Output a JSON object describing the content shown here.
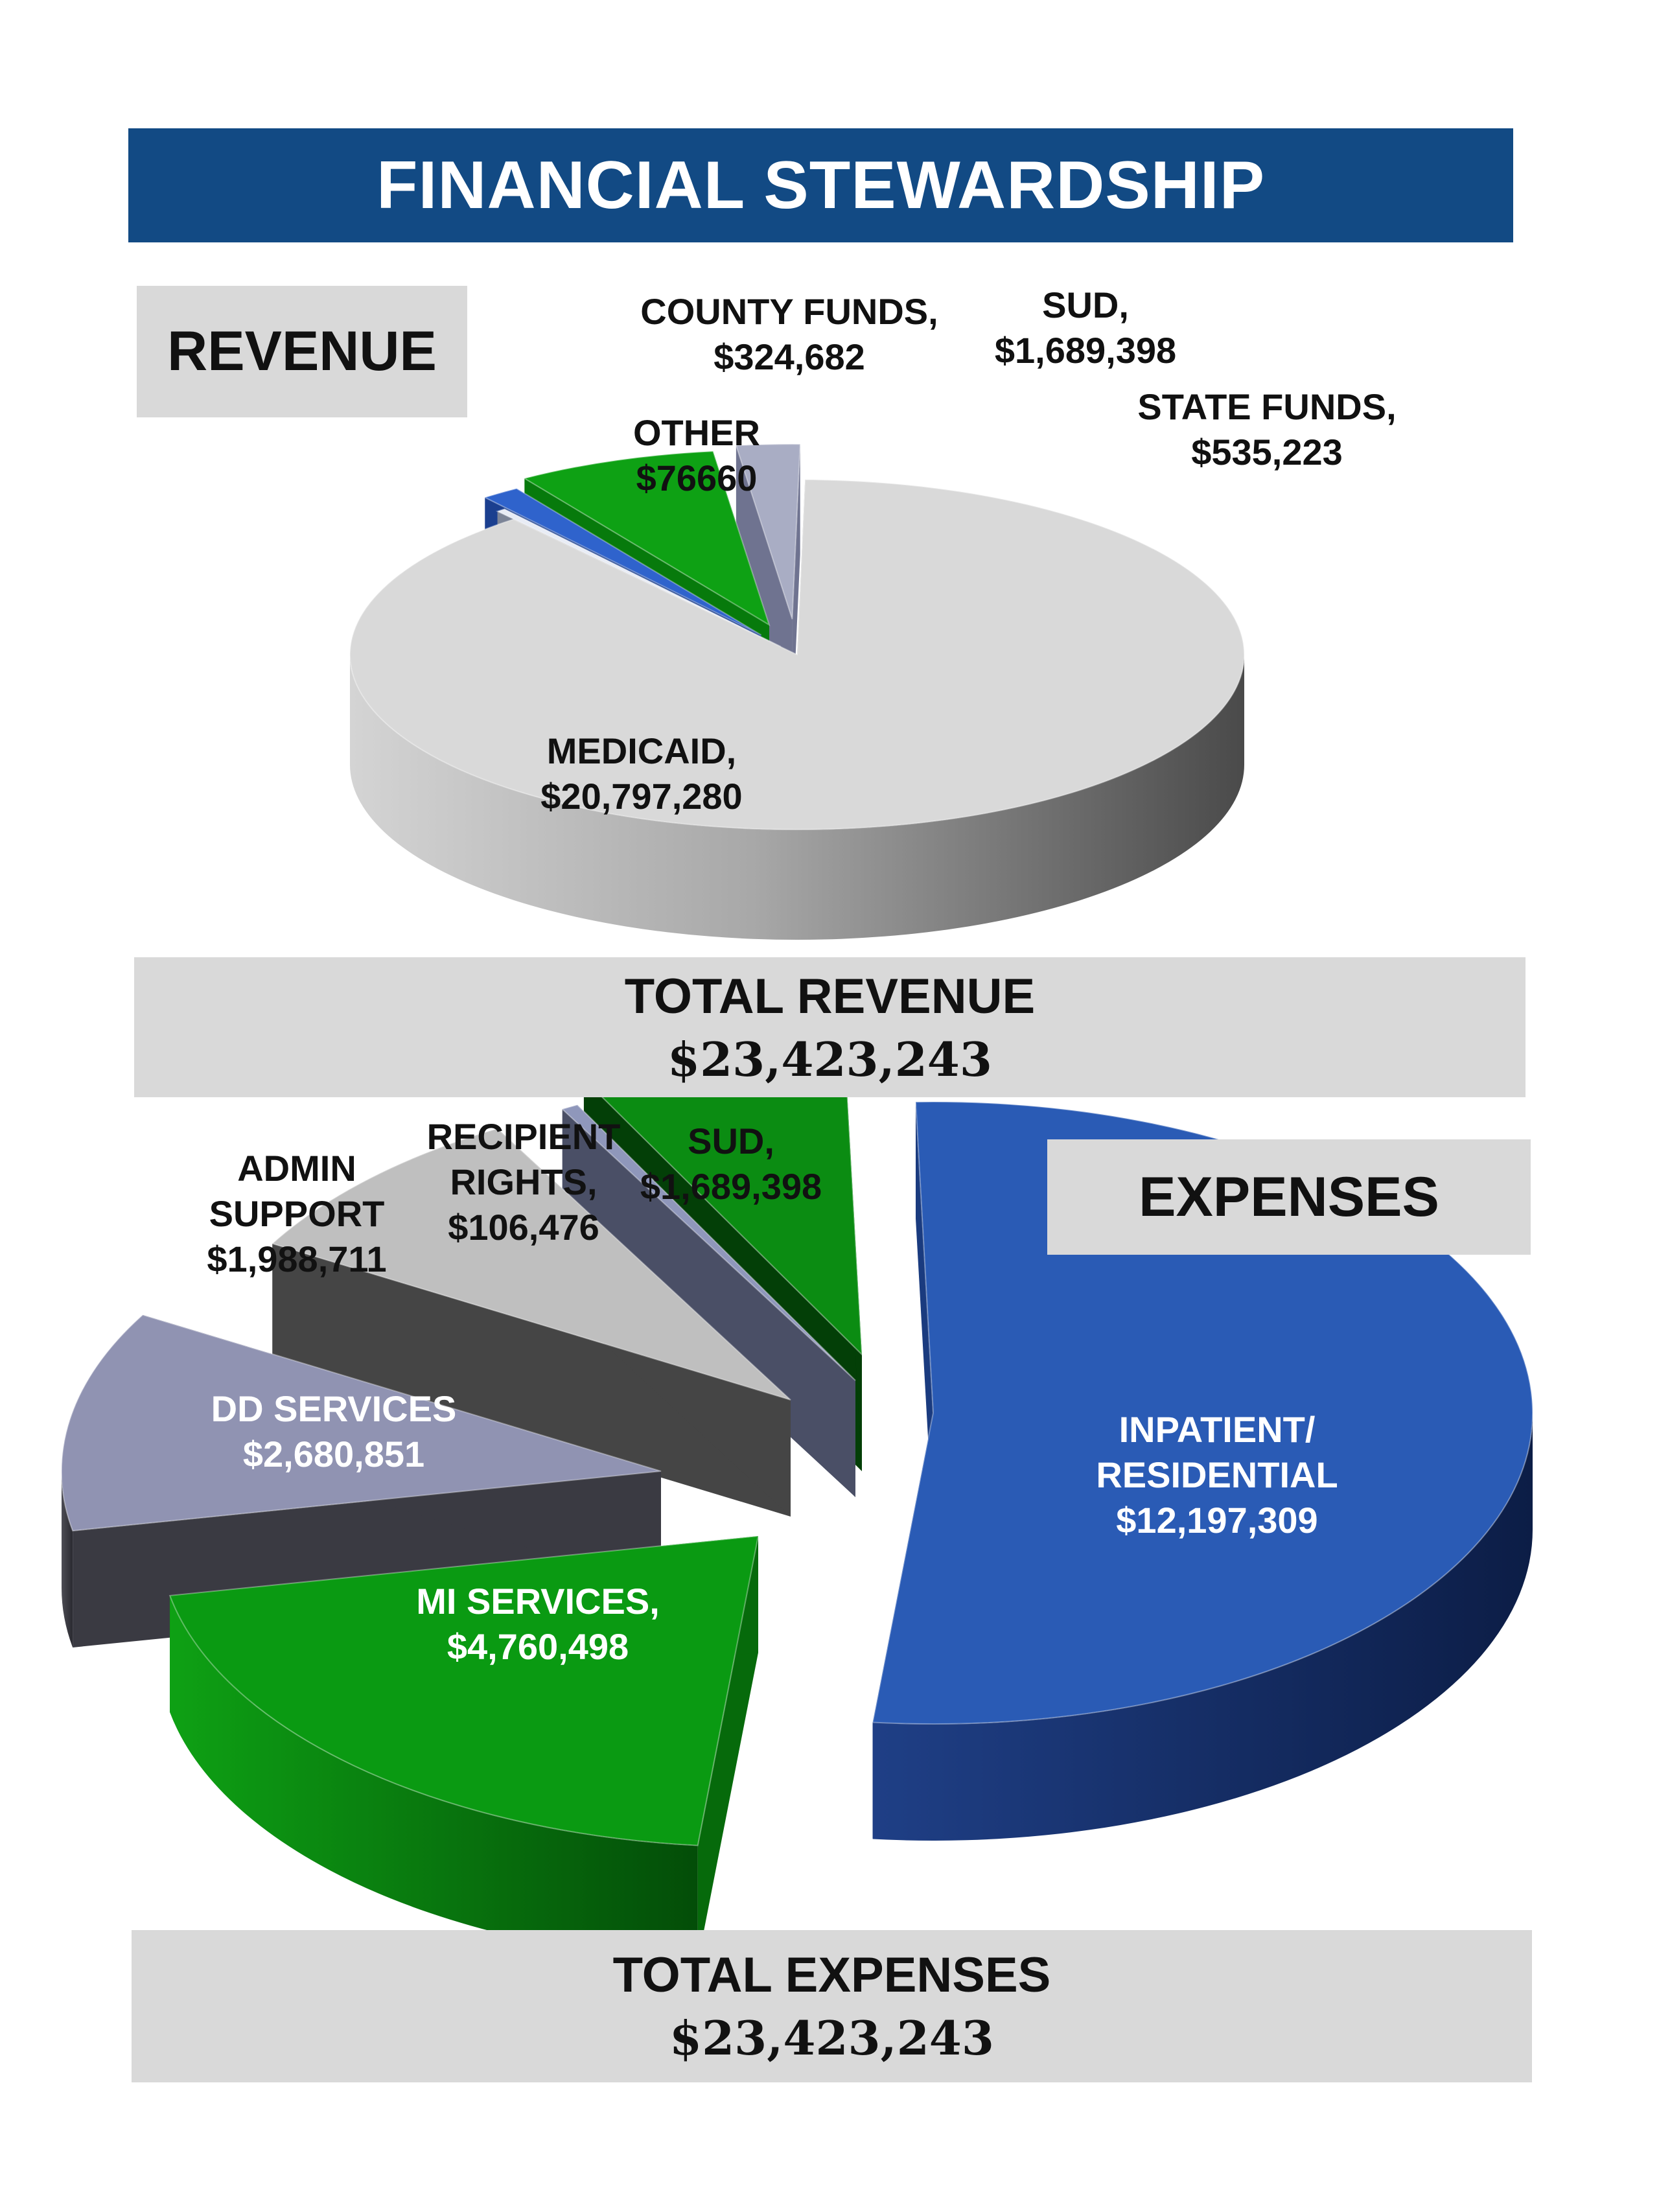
{
  "header": {
    "title": "FINANCIAL STEWARDSHIP"
  },
  "revenue": {
    "label": "REVENUE",
    "total_title": "TOTAL REVENUE",
    "total_value": "$23,423,243"
  },
  "expenses": {
    "label": "EXPENSES",
    "total_title": "TOTAL EXPENSES",
    "total_value": "$23,423,243"
  },
  "colors": {
    "banner": "#124a84",
    "blue": "#2a5bb5",
    "green": "#0a9a12",
    "lavender": "#8f93b3",
    "grey": "#bfbfbf",
    "light_grey": "#d9d9d9"
  },
  "chart_data": [
    {
      "type": "pie",
      "title": "REVENUE",
      "slices": [
        {
          "name": "MEDICAID",
          "value": 20797280,
          "label_lines": [
            "MEDICAID,",
            "$20,797,280"
          ]
        },
        {
          "name": "OTHER",
          "value": 76660,
          "label_lines": [
            "OTHER",
            "$76660"
          ]
        },
        {
          "name": "COUNTY FUNDS",
          "value": 324682,
          "label_lines": [
            "COUNTY FUNDS,",
            "$324,682"
          ]
        },
        {
          "name": "SUD",
          "value": 1689398,
          "label_lines": [
            "SUD,",
            "$1,689,398"
          ]
        },
        {
          "name": "STATE FUNDS",
          "value": 535223,
          "label_lines": [
            "STATE FUNDS,",
            "$535,223"
          ]
        }
      ]
    },
    {
      "type": "pie",
      "title": "EXPENSES",
      "slices": [
        {
          "name": "INPATIENT/ RESIDENTIAL",
          "value": 12197309,
          "label_lines": [
            "INPATIENT/",
            "RESIDENTIAL",
            "$12,197,309"
          ]
        },
        {
          "name": "MI SERVICES",
          "value": 4760498,
          "label_lines": [
            "MI SERVICES,",
            "$4,760,498"
          ]
        },
        {
          "name": "DD SERVICES",
          "value": 2680851,
          "label_lines": [
            "DD SERVICES",
            "$2,680,851"
          ]
        },
        {
          "name": "ADMIN SUPPORT",
          "value": 1988711,
          "label_lines": [
            "ADMIN",
            "SUPPORT",
            "$1,988,711"
          ]
        },
        {
          "name": "RECIPIENT RIGHTS",
          "value": 106476,
          "label_lines": [
            "RECIPIENT",
            "RIGHTS,",
            "$106,476"
          ]
        },
        {
          "name": "SUD",
          "value": 1689398,
          "label_lines": [
            "SUD,",
            "$1,689,398"
          ]
        }
      ]
    }
  ]
}
